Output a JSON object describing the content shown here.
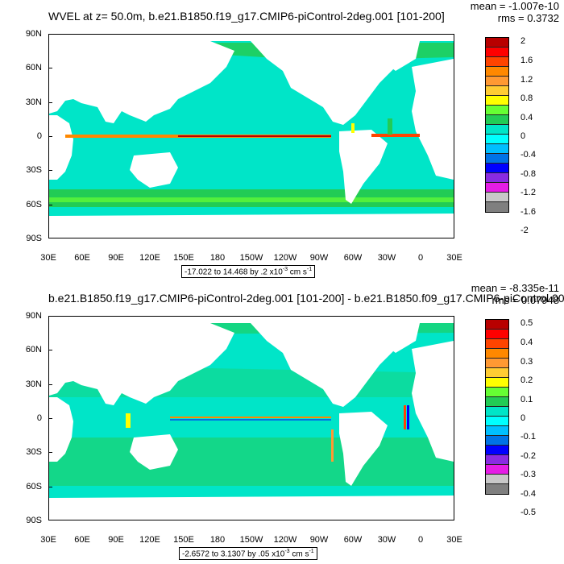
{
  "colors": [
    "#ffffff",
    "#7f7f7f",
    "#c8c8c8",
    "#e51de5",
    "#8a2be2",
    "#0000ff",
    "#0073e6",
    "#00bfff",
    "#00ffff",
    "#00e5c8",
    "#22cc55",
    "#66ff33",
    "#ffff00",
    "#ffcc33",
    "#ff9933",
    "#ff8800",
    "#ff4400",
    "#ff0000",
    "#b80000"
  ],
  "panels": [
    {
      "title": "WVEL at z=  50.0m, b.e21.B1850.f19_g17.CMIP6-piControl-2deg.001 [101-200]",
      "mean": "mean = -1.007e-10",
      "rms": "rms = 0.3732",
      "range_prefix": "-17.022 to 14.468 by .2 x10",
      "range_units": "cm s",
      "exponent": "-3",
      "units_exponent": "-1",
      "lat_labels": [
        "90N",
        "60N",
        "30N",
        "0",
        "30S",
        "60S",
        "90S"
      ],
      "lon_labels": [
        "30E",
        "60E",
        "90E",
        "120E",
        "150E",
        "180",
        "150W",
        "120W",
        "90W",
        "60W",
        "30W",
        "0",
        "30E"
      ],
      "legend_levels": [
        "2",
        "1.6",
        "1.2",
        "0.8",
        "0.4",
        "0",
        "-0.4",
        "-0.8",
        "-1.2",
        "-1.6",
        "-2"
      ]
    },
    {
      "title": "b.e21.B1850.f19_g17.CMIP6-piControl-2deg.001 [101-200] - b.e21.B1850.f09_g17.CMIP6-piControl.001",
      "mean": "mean = -8.335e-11",
      "rms": "rms = 0.07948",
      "range_prefix": "-2.6572 to 3.1307 by .05 x10",
      "range_units": "cm s",
      "exponent": "-3",
      "units_exponent": "-1",
      "lat_labels": [
        "90N",
        "60N",
        "30N",
        "0",
        "30S",
        "60S",
        "90S"
      ],
      "lon_labels": [
        "30E",
        "60E",
        "90E",
        "120E",
        "150E",
        "180",
        "150W",
        "120W",
        "90W",
        "60W",
        "30W",
        "0",
        "30E"
      ],
      "legend_levels": [
        "0.5",
        "0.4",
        "0.3",
        "0.2",
        "0.1",
        "0",
        "-0.1",
        "-0.2",
        "-0.3",
        "-0.4",
        "-0.5"
      ]
    }
  ]
}
